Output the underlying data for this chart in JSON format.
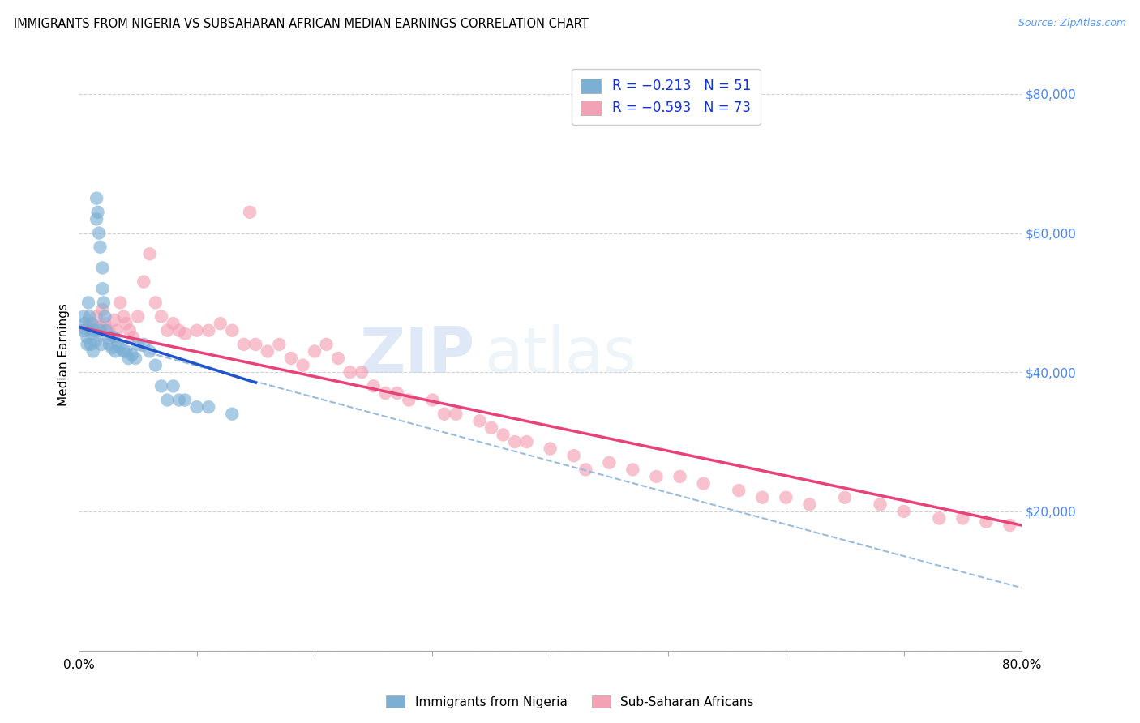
{
  "title": "IMMIGRANTS FROM NIGERIA VS SUBSAHARAN AFRICAN MEDIAN EARNINGS CORRELATION CHART",
  "source": "Source: ZipAtlas.com",
  "ylabel": "Median Earnings",
  "xlim": [
    0.0,
    0.8
  ],
  "ylim": [
    0,
    85000
  ],
  "yticks": [
    0,
    20000,
    40000,
    60000,
    80000
  ],
  "ytick_labels": [
    "",
    "$20,000",
    "$40,000",
    "$60,000",
    "$80,000"
  ],
  "xticks": [
    0.0,
    0.1,
    0.2,
    0.3,
    0.4,
    0.5,
    0.6,
    0.7,
    0.8
  ],
  "xtick_labels": [
    "0.0%",
    "",
    "",
    "",
    "",
    "",
    "",
    "",
    "80.0%"
  ],
  "legend_label1": "R = −0.213   N = 51",
  "legend_label2": "R = −0.593   N = 73",
  "color_nigeria": "#7bafd4",
  "color_subsaharan": "#f4a0b5",
  "color_nigeria_line": "#2255cc",
  "color_subsaharan_line": "#e8427a",
  "color_dashed": "#99bbdd",
  "watermark_zip": "ZIP",
  "watermark_atlas": "atlas",
  "nigeria_x": [
    0.003,
    0.004,
    0.005,
    0.006,
    0.007,
    0.007,
    0.008,
    0.009,
    0.01,
    0.01,
    0.011,
    0.012,
    0.012,
    0.013,
    0.014,
    0.015,
    0.015,
    0.016,
    0.017,
    0.018,
    0.018,
    0.019,
    0.02,
    0.02,
    0.021,
    0.022,
    0.023,
    0.025,
    0.026,
    0.028,
    0.03,
    0.031,
    0.033,
    0.035,
    0.038,
    0.04,
    0.042,
    0.045,
    0.048,
    0.05,
    0.055,
    0.06,
    0.065,
    0.07,
    0.075,
    0.08,
    0.085,
    0.09,
    0.1,
    0.11,
    0.13
  ],
  "nigeria_y": [
    46000,
    48000,
    47000,
    46000,
    45000,
    44000,
    50000,
    48000,
    46000,
    44000,
    47000,
    45500,
    43000,
    46000,
    44500,
    62000,
    65000,
    63000,
    60000,
    58000,
    46000,
    44000,
    55000,
    52000,
    50000,
    48000,
    46000,
    45000,
    44000,
    43500,
    45000,
    43000,
    44000,
    43500,
    43000,
    43000,
    42000,
    42500,
    42000,
    44000,
    44000,
    43000,
    41000,
    38000,
    36000,
    38000,
    36000,
    36000,
    35000,
    35000,
    34000
  ],
  "subsaharan_x": [
    0.005,
    0.008,
    0.01,
    0.012,
    0.015,
    0.018,
    0.02,
    0.022,
    0.025,
    0.028,
    0.03,
    0.032,
    0.035,
    0.038,
    0.04,
    0.043,
    0.046,
    0.05,
    0.055,
    0.06,
    0.065,
    0.07,
    0.075,
    0.08,
    0.085,
    0.09,
    0.1,
    0.11,
    0.12,
    0.13,
    0.14,
    0.15,
    0.16,
    0.17,
    0.18,
    0.19,
    0.2,
    0.21,
    0.22,
    0.23,
    0.24,
    0.25,
    0.26,
    0.27,
    0.28,
    0.3,
    0.31,
    0.32,
    0.34,
    0.35,
    0.36,
    0.37,
    0.38,
    0.4,
    0.42,
    0.43,
    0.45,
    0.47,
    0.49,
    0.51,
    0.53,
    0.56,
    0.58,
    0.6,
    0.62,
    0.65,
    0.68,
    0.7,
    0.73,
    0.75,
    0.77,
    0.79,
    0.145
  ],
  "subsaharan_y": [
    46000,
    46500,
    47000,
    46000,
    48000,
    46500,
    49000,
    47000,
    46000,
    45000,
    47500,
    46000,
    50000,
    48000,
    47000,
    46000,
    45000,
    48000,
    53000,
    57000,
    50000,
    48000,
    46000,
    47000,
    46000,
    45500,
    46000,
    46000,
    47000,
    46000,
    44000,
    44000,
    43000,
    44000,
    42000,
    41000,
    43000,
    44000,
    42000,
    40000,
    40000,
    38000,
    37000,
    37000,
    36000,
    36000,
    34000,
    34000,
    33000,
    32000,
    31000,
    30000,
    30000,
    29000,
    28000,
    26000,
    27000,
    26000,
    25000,
    25000,
    24000,
    23000,
    22000,
    22000,
    21000,
    22000,
    21000,
    20000,
    19000,
    19000,
    18500,
    18000,
    63000
  ],
  "nigeria_line_x0": 0.0,
  "nigeria_line_y0": 46500,
  "nigeria_line_x1": 0.15,
  "nigeria_line_y1": 38500,
  "subsaharan_line_x0": 0.0,
  "subsaharan_line_y0": 46500,
  "subsaharan_line_x1": 0.8,
  "subsaharan_line_y1": 18000,
  "dashed_line_x0": 0.0,
  "dashed_line_y0": 45500,
  "dashed_line_x1": 0.8,
  "dashed_line_y1": 9000
}
